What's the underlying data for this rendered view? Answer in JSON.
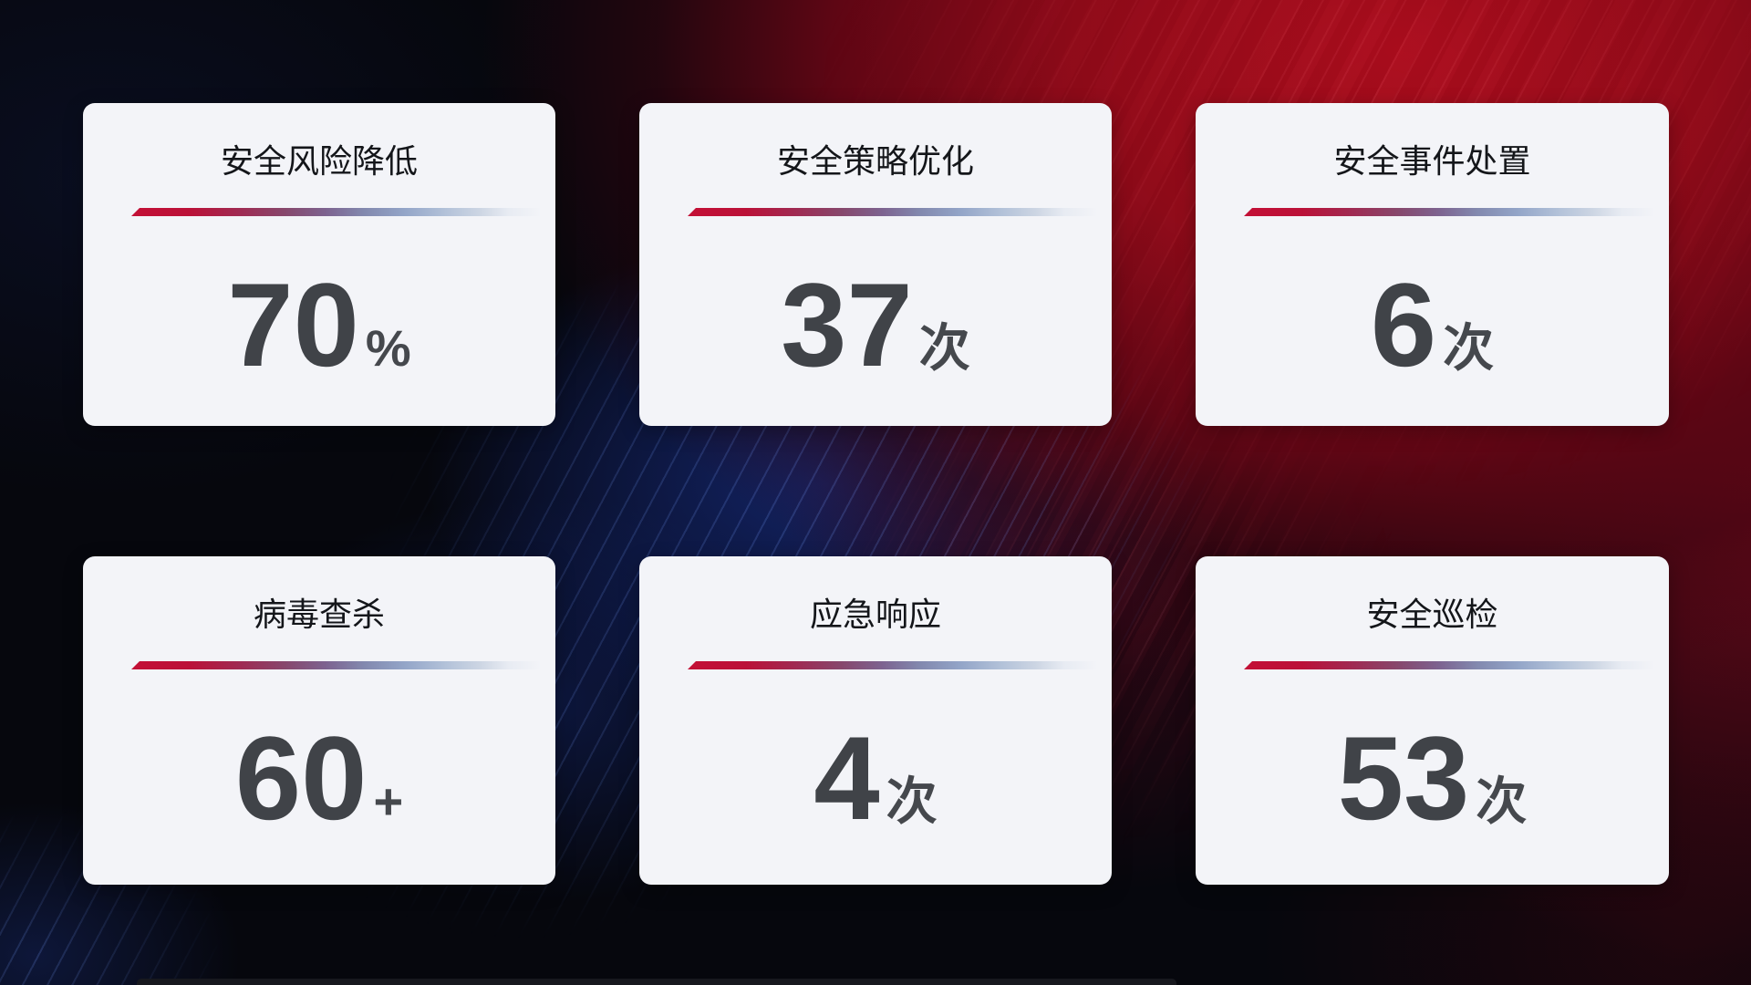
{
  "colors": {
    "background_base": "#06070d",
    "background_red": "#a80c1c",
    "background_blue_glow": "#1b36a0",
    "card_background": "#f3f4f8",
    "title_color": "#14161a",
    "value_color": "#404348",
    "divider_red": "#c31036",
    "divider_blue_gray": "#93a5c8"
  },
  "cards": [
    {
      "title": "安全风险降低",
      "value": "70",
      "unit": "%"
    },
    {
      "title": "安全策略优化",
      "value": "37",
      "unit": "次"
    },
    {
      "title": "安全事件处置",
      "value": "6",
      "unit": "次"
    },
    {
      "title": "病毒查杀",
      "value": "60",
      "unit": "+"
    },
    {
      "title": "应急响应",
      "value": "4",
      "unit": "次"
    },
    {
      "title": "安全巡检",
      "value": "53",
      "unit": "次"
    }
  ],
  "chart_data": {
    "type": "table",
    "categories": [
      "安全风险降低",
      "安全策略优化",
      "安全事件处置",
      "病毒查杀",
      "应急响应",
      "安全巡检"
    ],
    "values": [
      70,
      37,
      6,
      60,
      4,
      53
    ],
    "units": [
      "%",
      "次",
      "次",
      "+",
      "次",
      "次"
    ],
    "layout": "2 rows x 3 columns of KPI stat cards on dark red/blue gradient background"
  }
}
